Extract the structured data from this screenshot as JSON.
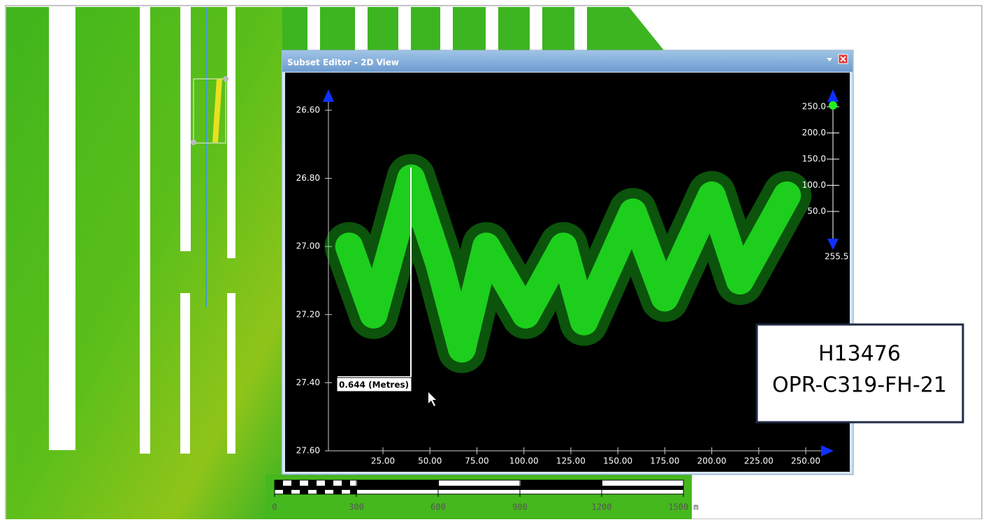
{
  "window": {
    "title": "Subset Editor - 2D View"
  },
  "plot": {
    "xlim": [
      0,
      260
    ],
    "ylim": [
      26.6,
      27.6
    ],
    "xticks": [
      {
        "value": 25,
        "label": "25.00"
      },
      {
        "value": 50,
        "label": "50.00"
      },
      {
        "value": 75,
        "label": "75.00"
      },
      {
        "value": 100,
        "label": "100.00"
      },
      {
        "value": 125,
        "label": "125.00"
      },
      {
        "value": 150,
        "label": "150.00"
      },
      {
        "value": 175,
        "label": "175.00"
      },
      {
        "value": 200,
        "label": "200.00"
      },
      {
        "value": 225,
        "label": "225.00"
      },
      {
        "value": 250,
        "label": "250.00"
      }
    ],
    "yticks": [
      {
        "value": 26.6,
        "label": "26.60"
      },
      {
        "value": 26.8,
        "label": "26.80"
      },
      {
        "value": 27.0,
        "label": "27.00"
      },
      {
        "value": 27.2,
        "label": "27.20"
      },
      {
        "value": 27.4,
        "label": "27.40"
      },
      {
        "value": 27.6,
        "label": "27.60"
      }
    ],
    "profile": {
      "color": "#22ee22",
      "x": [
        7,
        20,
        40,
        55,
        67,
        80,
        101,
        121,
        132,
        158,
        175,
        200,
        215,
        240
      ],
      "values": [
        27.0,
        27.2,
        26.8,
        27.05,
        27.3,
        27.0,
        27.2,
        27.0,
        27.22,
        26.9,
        27.15,
        26.85,
        27.1,
        26.85
      ]
    },
    "measurement": {
      "label": "0.644 (Metres)"
    }
  },
  "color_scale": {
    "ylim": [
      0,
      255.5
    ],
    "ticks": [
      {
        "value": 250,
        "label": "250.0"
      },
      {
        "value": 200,
        "label": "200.0"
      },
      {
        "value": 150,
        "label": "150.0"
      },
      {
        "value": 100,
        "label": "100.0"
      },
      {
        "value": 50,
        "label": "50.0"
      }
    ],
    "bottom_label": "255.5"
  },
  "scale_bar": {
    "ticks": [
      "0",
      "300",
      "600",
      "900",
      "1200",
      "1500 m"
    ]
  },
  "label_box": {
    "lines": [
      "H13476",
      "OPR-C319-FH-21"
    ]
  }
}
